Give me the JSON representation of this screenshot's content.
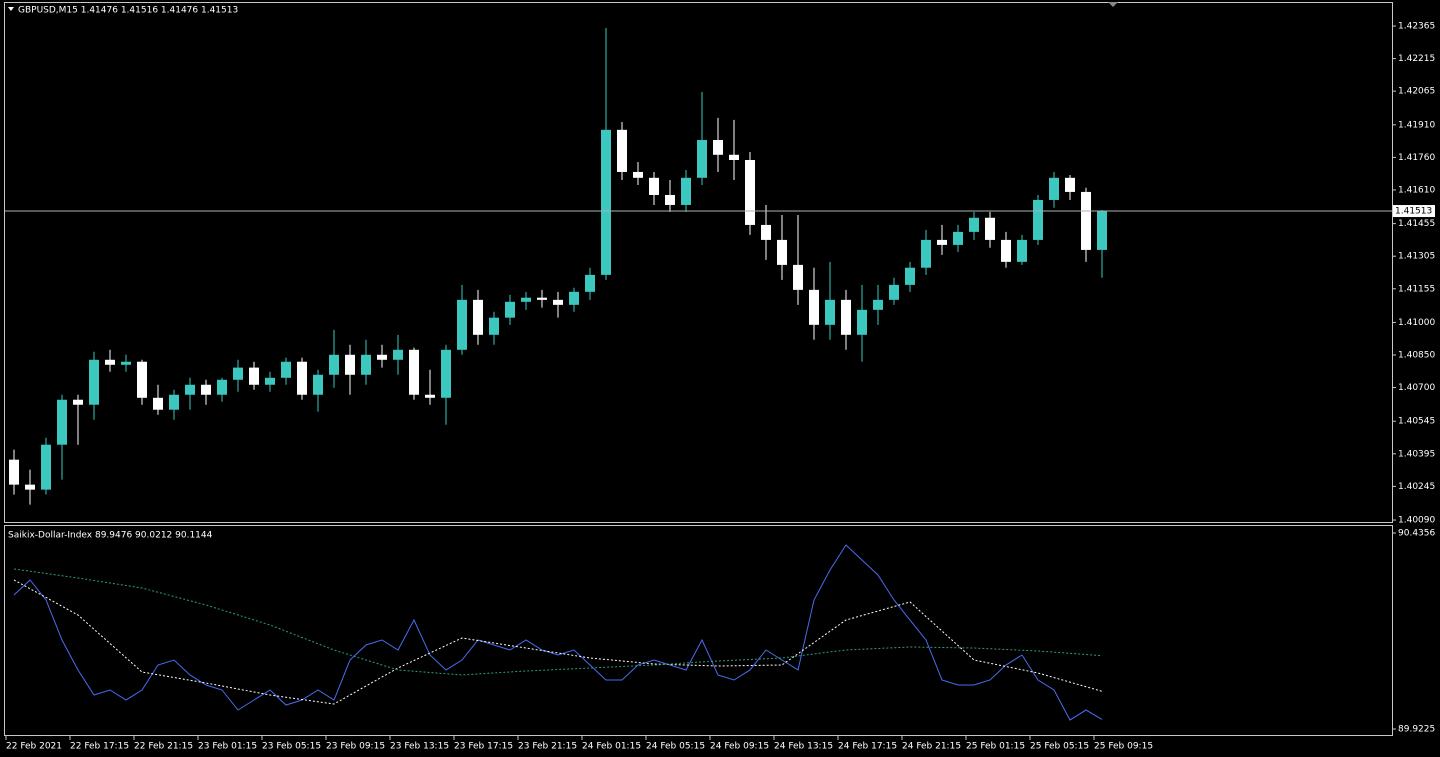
{
  "chart_data": [
    {
      "type": "candlestick",
      "title": "GBPUSD,M15  1.41476 1.41516 1.41476 1.41513",
      "categories": [
        "22 Feb 2021",
        null,
        null,
        null,
        "22 Feb 17:15",
        null,
        null,
        null,
        "22 Feb 21:15",
        null,
        null,
        null,
        "23 Feb 01:15",
        null,
        null,
        null,
        "23 Feb 05:15",
        null,
        null,
        null,
        "23 Feb 09:15",
        null,
        null,
        null,
        "23 Feb 13:15",
        null,
        null,
        null,
        "23 Feb 17:15",
        null,
        null,
        null,
        "23 Feb 21:15",
        null,
        null,
        null,
        "24 Feb 01:15",
        null,
        null,
        null,
        "24 Feb 05:15",
        null,
        null,
        null,
        "24 Feb 09:15",
        null,
        null,
        null,
        "24 Feb 13:15",
        null,
        null,
        null,
        "24 Feb 17:15",
        null,
        null,
        null,
        "24 Feb 21:15",
        null,
        null,
        null,
        "25 Feb 01:15",
        null,
        null,
        null,
        "25 Feb 05:15",
        null,
        null,
        null,
        "25 Feb 09:15"
      ],
      "open": [
        1.40368,
        1.40253,
        1.4023,
        1.40437,
        1.40644,
        1.40621,
        1.40828,
        1.40805,
        1.40819,
        1.40653,
        1.40598,
        1.40667,
        1.40713,
        1.40667,
        1.40736,
        1.40792,
        1.40713,
        1.40745,
        1.40819,
        1.40667,
        1.40759,
        1.40851,
        1.40759,
        1.40851,
        1.40828,
        1.40874,
        1.40667,
        1.40653,
        1.40874,
        1.41104,
        1.40943,
        1.41022,
        1.41095,
        1.41114,
        1.41104,
        1.41081,
        1.41141,
        1.41219,
        1.41887,
        1.41693,
        1.41666,
        1.41587,
        1.41541,
        1.41666,
        1.4184,
        1.41772,
        1.41748,
        1.41449,
        1.4138,
        1.41265,
        1.4115,
        1.40989,
        1.41104,
        1.40943,
        1.41058,
        1.41104,
        1.41173,
        1.41252,
        1.4138,
        1.41357,
        1.41417,
        1.41482,
        1.4138,
        1.41279,
        1.4138,
        1.41564,
        1.41666,
        1.41601,
        1.41334
      ],
      "high": [
        1.40414,
        1.40322,
        1.40469,
        1.40667,
        1.40667,
        1.40865,
        1.40874,
        1.40851,
        1.40828,
        1.40713,
        1.4069,
        1.40745,
        1.40736,
        1.40745,
        1.40828,
        1.40819,
        1.40773,
        1.40838,
        1.40838,
        1.40782,
        1.40966,
        1.40897,
        1.4092,
        1.40897,
        1.40943,
        1.40884,
        1.40782,
        1.40897,
        1.41173,
        1.4115,
        1.41049,
        1.41127,
        1.41141,
        1.4115,
        1.41141,
        1.4116,
        1.41252,
        1.42356,
        1.41923,
        1.41739,
        1.41693,
        1.41656,
        1.41702,
        1.42061,
        1.41942,
        1.41933,
        1.41785,
        1.41541,
        1.41495,
        1.41495,
        1.41252,
        1.41279,
        1.4115,
        1.41173,
        1.41173,
        1.41206,
        1.41279,
        1.41426,
        1.41449,
        1.41449,
        1.41509,
        1.41509,
        1.41417,
        1.41403,
        1.41587,
        1.41693,
        1.41679,
        1.4162,
        1.41518
      ],
      "low": [
        1.40207,
        1.40161,
        1.40207,
        1.40276,
        1.40437,
        1.40552,
        1.40773,
        1.40773,
        1.40621,
        1.40575,
        1.40552,
        1.40598,
        1.40621,
        1.40635,
        1.40681,
        1.4069,
        1.40681,
        1.40713,
        1.40644,
        1.40589,
        1.40699,
        1.40667,
        1.40713,
        1.40792,
        1.40759,
        1.40644,
        1.40621,
        1.40529,
        1.40851,
        1.40897,
        1.40897,
        1.40989,
        1.41058,
        1.41068,
        1.41022,
        1.41049,
        1.41104,
        1.41196,
        1.41656,
        1.41633,
        1.41541,
        1.41509,
        1.41509,
        1.41633,
        1.41693,
        1.41656,
        1.41403,
        1.41288,
        1.41196,
        1.41081,
        1.4092,
        1.4092,
        1.40874,
        1.40819,
        1.40989,
        1.41081,
        1.41141,
        1.41219,
        1.41311,
        1.41325,
        1.4138,
        1.41344,
        1.41252,
        1.41265,
        1.41357,
        1.41528,
        1.41564,
        1.41279,
        1.41206
      ],
      "close": [
        1.40253,
        1.4023,
        1.40437,
        1.40644,
        1.40621,
        1.40828,
        1.40805,
        1.40819,
        1.40653,
        1.40598,
        1.40667,
        1.40713,
        1.40667,
        1.40736,
        1.40792,
        1.40713,
        1.40745,
        1.40819,
        1.40667,
        1.40759,
        1.40851,
        1.40759,
        1.40851,
        1.40828,
        1.40874,
        1.40667,
        1.40653,
        1.40874,
        1.41104,
        1.40943,
        1.41022,
        1.41095,
        1.41114,
        1.41104,
        1.41081,
        1.41141,
        1.41219,
        1.41887,
        1.41693,
        1.41666,
        1.41587,
        1.41541,
        1.41666,
        1.4184,
        1.41772,
        1.41748,
        1.41449,
        1.4138,
        1.41265,
        1.4115,
        1.40989,
        1.41104,
        1.40943,
        1.41058,
        1.41104,
        1.41173,
        1.41252,
        1.4138,
        1.41357,
        1.41417,
        1.41482,
        1.4138,
        1.41279,
        1.4138,
        1.41564,
        1.41666,
        1.41601,
        1.41334,
        1.41513
      ],
      "up_color": "#3cc8bf",
      "down_color": "#ffffff",
      "last_price": 1.41513,
      "ylim": [
        1.40081,
        1.42471
      ],
      "yticks": [
        1.42365,
        1.42215,
        1.42065,
        {
          "value": 1.4191,
          "label": "1.41910"
        },
        {
          "value": 1.4176,
          "label": "1.41760"
        },
        {
          "value": 1.4161,
          "label": "1.41610"
        },
        1.41455,
        1.41305,
        1.41155,
        {
          "value": 1.41,
          "label": "1.41000"
        },
        {
          "value": 1.4085,
          "label": "1.40850"
        },
        {
          "value": 1.407,
          "label": "1.40700"
        },
        1.40545,
        1.40395,
        1.40245,
        {
          "value": 1.4009,
          "label": "1.40090"
        }
      ]
    },
    {
      "type": "line",
      "title": "Saikix-Dollar-Index 89.9476 90.0212 90.1144",
      "series": [
        {
          "color": "#4a6cf0",
          "line_style": "solid",
          "values": [
            90.2733,
            90.3126,
            90.2602,
            90.1555,
            90.077,
            90.0115,
            90.0246,
            89.9984,
            90.0246,
            90.09,
            90.1031,
            90.0639,
            90.0377,
            90.0246,
            89.9722,
            89.9984,
            90.0246,
            89.9853,
            89.9984,
            90.0246,
            89.9984,
            90.1031,
            90.1424,
            90.1555,
            90.1293,
            90.2078,
            90.1162,
            90.077,
            90.1031,
            90.1555,
            90.1424,
            90.1293,
            90.1555,
            90.1293,
            90.1162,
            90.1293,
            90.09,
            90.0508,
            90.0508,
            90.09,
            90.1031,
            90.09,
            90.077,
            90.1555,
            90.0639,
            90.0508,
            90.077,
            90.1293,
            90.1031,
            90.077,
            90.2602,
            90.3387,
            90.4042,
            90.3649,
            90.3257,
            90.2602,
            90.2078,
            90.1555,
            90.0508,
            90.0377,
            90.0377,
            90.0508,
            90.09,
            90.1162,
            90.0508,
            90.0246,
            89.9461,
            89.9722,
            89.9476
          ]
        },
        {
          "color": "#ffffff",
          "line_style": "dashed",
          "values": [
            90.3126,
            90.2897,
            90.2668,
            90.2438,
            90.2209,
            90.1836,
            90.1463,
            90.109,
            90.0717,
            90.0645,
            90.0573,
            90.0501,
            90.0429,
            90.0351,
            90.0272,
            90.0194,
            90.0115,
            90.0056,
            89.9997,
            89.9938,
            89.9879,
            90.0115,
            90.0351,
            90.0586,
            90.0822,
            90.1018,
            90.1214,
            90.1411,
            90.1607,
            90.1541,
            90.1476,
            90.141,
            90.1345,
            90.128,
            90.1215,
            90.1149,
            90.1084,
            90.1045,
            90.1006,
            90.0966,
            90.0927,
            90.0914,
            90.09,
            90.0887,
            90.0874,
            90.088,
            90.0887,
            90.0894,
            90.09,
            90.1195,
            90.1489,
            90.1784,
            90.2078,
            90.2196,
            90.2314,
            90.2432,
            90.255,
            90.217,
            90.179,
            90.1411,
            90.1031,
            90.0946,
            90.0861,
            90.0776,
            90.0691,
            90.0571,
            90.0452,
            90.0332,
            90.0212
          ]
        },
        {
          "color": "#2e9e7a",
          "line_style": "dashed",
          "values": [
            90.3414,
            90.3355,
            90.3296,
            90.3237,
            90.3178,
            90.3113,
            90.3047,
            90.2982,
            90.2916,
            90.2805,
            90.2694,
            90.2582,
            90.2471,
            90.234,
            90.221,
            90.2079,
            90.1948,
            90.1784,
            90.162,
            90.1457,
            90.1293,
            90.1162,
            90.1032,
            90.0901,
            90.077,
            90.0737,
            90.0704,
            90.0672,
            90.0639,
            90.0665,
            90.0691,
            90.0717,
            90.0743,
            90.0763,
            90.0783,
            90.0802,
            90.0822,
            90.0842,
            90.0861,
            90.0881,
            90.09,
            90.0926,
            90.0953,
            90.0979,
            90.1005,
            90.1025,
            90.1045,
            90.1064,
            90.1084,
            90.1136,
            90.1188,
            90.1241,
            90.1293,
            90.1313,
            90.1333,
            90.1352,
            90.1372,
            90.1365,
            90.1358,
            90.1352,
            90.1345,
            90.1325,
            90.1306,
            90.1286,
            90.1267,
            90.1236,
            90.1206,
            90.1175,
            90.1144
          ]
        }
      ],
      "ylim": [
        89.9068,
        90.4539
      ],
      "yticks": [
        90.4356,
        89.9225
      ]
    }
  ]
}
